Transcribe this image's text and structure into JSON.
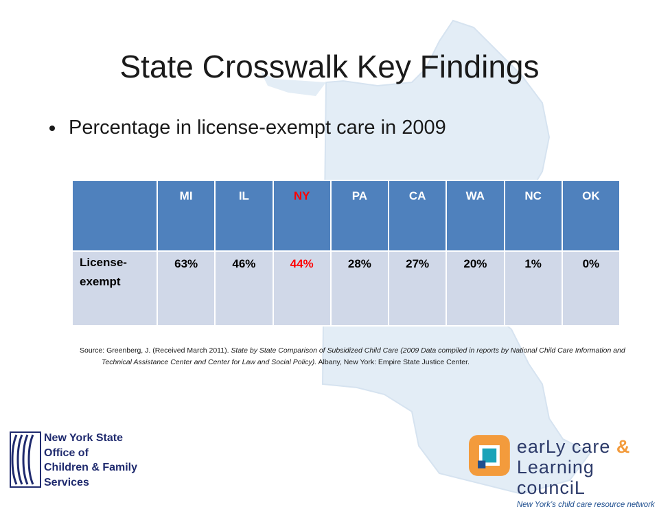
{
  "slide": {
    "title": "State Crosswalk Key Findings",
    "bullet": "Percentage in license-exempt care in 2009"
  },
  "table": {
    "corner": "",
    "headers": [
      "MI",
      "IL",
      "NY",
      "PA",
      "CA",
      "WA",
      "NC",
      "OK"
    ],
    "row_label": "License- exempt",
    "values": [
      "63%",
      "46%",
      "44%",
      "28%",
      "27%",
      "20%",
      "1%",
      "0%"
    ],
    "highlight_column": "NY",
    "highlight_color": "#ff0000",
    "header_color": "#4f81bd",
    "row_color": "#d0d8e8"
  },
  "source": {
    "prefix": "Source: Greenberg, J. (Received March 2011). ",
    "title_italic": "State by State Comparison of Subsidized Child Care (2009 Data compiled in reports by National Child Care Information and Technical Assistance Center and Center for Law and Social Policy).",
    "suffix": " Albany, New York: Empire State Justice Center."
  },
  "logos": {
    "ocfs": {
      "lines": [
        "New York State",
        "Office of",
        "Children & Family",
        "Services"
      ],
      "color": "#1f2a6e"
    },
    "eclc": {
      "line1": "earLy care",
      "amp": "&",
      "line2": "Learning counciL",
      "tagline": "New York’s child care resource network",
      "orange": "#f39b3c",
      "navy": "#2d3b6a"
    }
  },
  "background": {
    "map_color": "#e3edf6"
  }
}
